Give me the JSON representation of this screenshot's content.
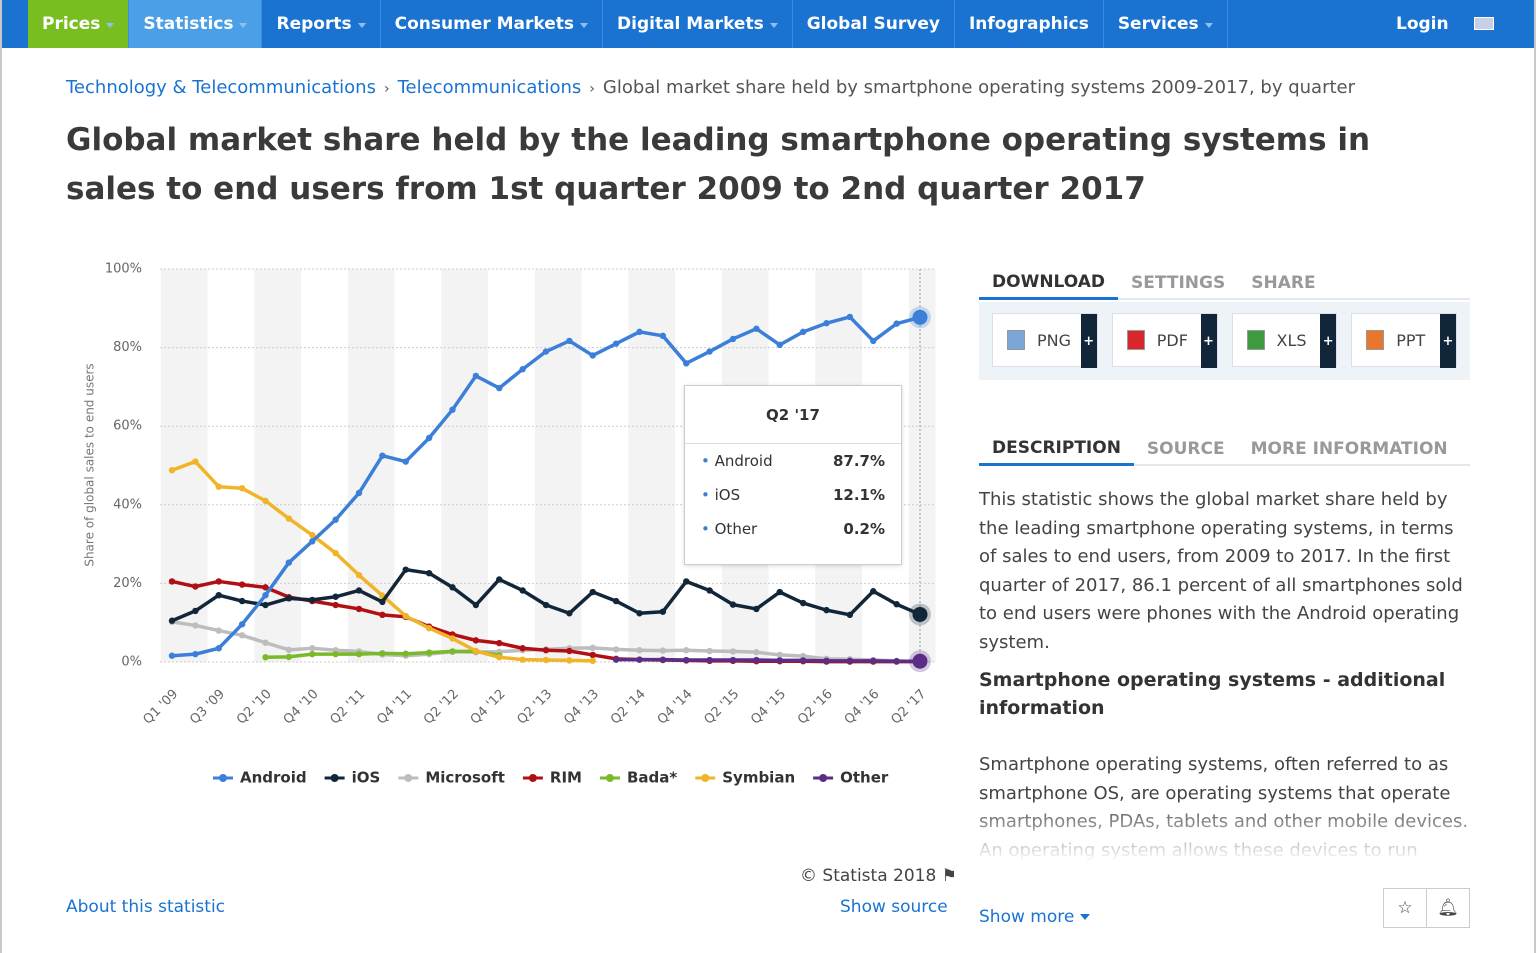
{
  "nav": {
    "items": [
      "Prices",
      "Statistics",
      "Reports",
      "Consumer Markets",
      "Digital Markets",
      "Global Survey",
      "Infographics",
      "Services"
    ],
    "login": "Login"
  },
  "breadcrumb": [
    "Technology & Telecommunications",
    "Telecommunications",
    "Global market share held by smartphone operating systems 2009-2017, by quarter"
  ],
  "title": "Global market share held by the leading smartphone operating systems in sales to end users from 1st quarter 2009 to 2nd quarter 2017",
  "chart_data": {
    "type": "line",
    "y_label": "Share of global sales to end users",
    "categories": [
      "Q1 '09",
      null,
      "Q3 '09",
      null,
      "Q2 '10",
      null,
      "Q4 '10",
      null,
      "Q2 '11",
      null,
      "Q4 '11",
      null,
      "Q2 '12",
      null,
      "Q4 '12",
      null,
      "Q2 '13",
      null,
      "Q4 '13",
      null,
      "Q2 '14",
      null,
      "Q4 '14",
      null,
      "Q2 '15",
      null,
      "Q4 '15",
      null,
      "Q2 '16",
      null,
      "Q4 '16",
      null,
      "Q2 '17"
    ],
    "ylim": [
      0,
      100
    ],
    "yticks": [
      {
        "value": 0,
        "label": "0%"
      },
      {
        "value": 20,
        "label": "20%"
      },
      {
        "value": 40,
        "label": "40%"
      },
      {
        "value": 60,
        "label": "60%"
      },
      {
        "value": 80,
        "label": "80%"
      },
      {
        "value": 100,
        "label": "100%"
      }
    ],
    "grid": true,
    "series": [
      {
        "name": "Android",
        "color": "#3c7fd9",
        "values": [
          1.6,
          2,
          3.5,
          9.6,
          17,
          25.3,
          30.7,
          36.2,
          43,
          52.5,
          51,
          57,
          64.2,
          72.8,
          69.7,
          74.5,
          79,
          81.7,
          78,
          81,
          84,
          83,
          76,
          79,
          82.2,
          84.8,
          80.7,
          84,
          86.2,
          87.8,
          81.7,
          86.1,
          87.7
        ]
      },
      {
        "name": "iOS",
        "color": "#12263a",
        "values": [
          10.5,
          13,
          17,
          15.5,
          14.5,
          16.2,
          15.8,
          16.6,
          18.2,
          15.3,
          23.5,
          22.6,
          19,
          14.5,
          21,
          18.2,
          14.5,
          12.4,
          17.8,
          15.5,
          12.4,
          12.8,
          20.5,
          18.2,
          14.6,
          13.5,
          17.8,
          15,
          13.2,
          12,
          18,
          14.7,
          12.1
        ]
      },
      {
        "name": "Microsoft",
        "color": "#bdbdbd",
        "values": [
          10.2,
          9.3,
          8,
          6.8,
          4.9,
          3.1,
          3.5,
          3,
          2.7,
          1.9,
          1.6,
          2,
          2.6,
          2.5,
          2.6,
          3,
          3.2,
          3.5,
          3.6,
          3.2,
          3,
          2.9,
          3,
          2.8,
          2.7,
          2.5,
          1.8,
          1.5,
          0.8,
          0.7,
          0.5,
          0.3,
          0.1
        ]
      },
      {
        "name": "RIM",
        "color": "#b00f14",
        "values": [
          20.5,
          19.2,
          20.5,
          19.7,
          19,
          16.5,
          15.5,
          14.5,
          13.5,
          12,
          11.5,
          9,
          7,
          5.5,
          4.8,
          3.5,
          3,
          2.8,
          1.8,
          0.8,
          0.6,
          0.5,
          0.4,
          0.3,
          0.3,
          0.2,
          0.2,
          0.2,
          0.1,
          0.1,
          0.1,
          0.1,
          0.1
        ]
      },
      {
        "name": "Bada*",
        "color": "#7ab929",
        "values": [
          null,
          null,
          null,
          null,
          1.2,
          1.3,
          2,
          2,
          2,
          2.2,
          2.1,
          2.4,
          2.7,
          2.7,
          1.7,
          null,
          null,
          null,
          null,
          null,
          null,
          null,
          null,
          null,
          null,
          null,
          null,
          null,
          null,
          null,
          null,
          null,
          null
        ]
      },
      {
        "name": "Symbian",
        "color": "#f0b429",
        "values": [
          48.8,
          51,
          44.6,
          44.2,
          41,
          36.5,
          32.3,
          27.7,
          22.1,
          16.9,
          11.7,
          8.6,
          6,
          2.8,
          1.2,
          0.6,
          0.5,
          0.4,
          0.3,
          null,
          null,
          null,
          null,
          null,
          null,
          null,
          null,
          null,
          null,
          null,
          null,
          null,
          null
        ]
      },
      {
        "name": "Other",
        "color": "#5b2d86",
        "values": [
          null,
          null,
          null,
          null,
          null,
          null,
          null,
          null,
          null,
          null,
          null,
          null,
          null,
          null,
          null,
          null,
          null,
          null,
          null,
          0.6,
          0.6,
          0.6,
          0.5,
          0.5,
          0.5,
          0.5,
          0.4,
          0.4,
          0.3,
          0.3,
          0.3,
          0.2,
          0.2
        ]
      }
    ]
  },
  "tooltip": {
    "title": "Q2 '17",
    "rows": [
      [
        "Android",
        "87.7%"
      ],
      [
        "iOS",
        "12.1%"
      ],
      [
        "Other",
        "0.2%"
      ]
    ]
  },
  "credit": "© Statista 2018",
  "about": "About this statistic",
  "show_source": "Show source",
  "panel": {
    "tabs": [
      "DOWNLOAD",
      "SETTINGS",
      "SHARE"
    ],
    "downloads": [
      "PNG",
      "PDF",
      "XLS",
      "PPT"
    ],
    "info_tabs": [
      "DESCRIPTION",
      "SOURCE",
      "MORE INFORMATION"
    ],
    "description": "This statistic shows the global market share held by the leading smartphone operating systems, in terms of sales to end users, from 2009 to 2017. In the first quarter of 2017, 86.1 percent of all smartphones sold to end users were phones with the Android operating system.",
    "heading": "Smartphone operating systems - additional information",
    "text": "Smartphone operating systems, often referred to as smartphone OS, are operating systems that operate smartphones, PDAs, tablets and other mobile devices. An operating system allows these devices to run",
    "show_more": "Show more"
  }
}
